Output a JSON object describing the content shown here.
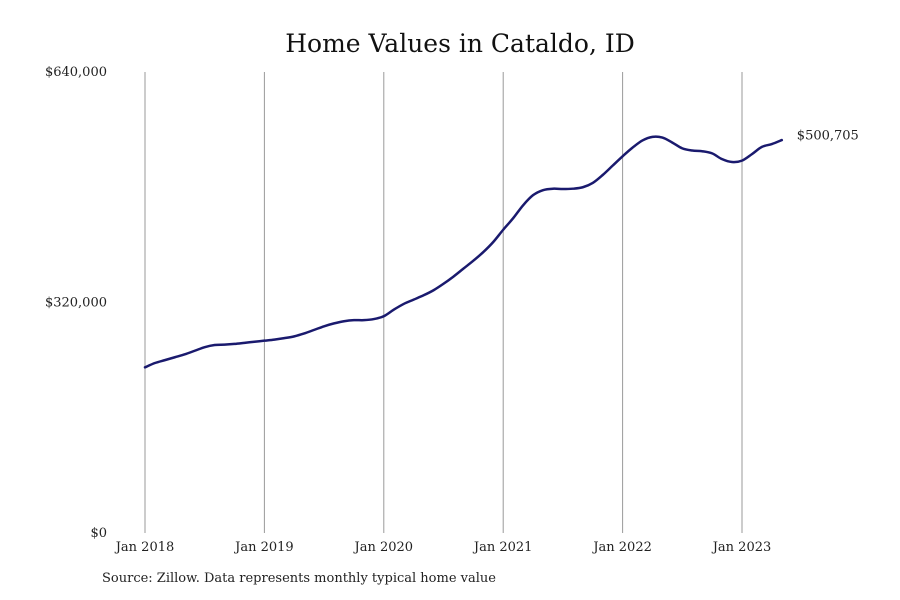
{
  "chart_data": {
    "type": "line",
    "title": "Home Values in Cataldo, ID",
    "xlabel": "",
    "ylabel": "",
    "x_tick_labels": [
      "Jan 2018",
      "Jan 2019",
      "Jan 2020",
      "Jan 2021",
      "Jan 2022",
      "Jan 2023"
    ],
    "y_tick_labels": [
      "$0",
      "$320,000",
      "$640,000"
    ],
    "y_ticks": [
      0,
      320000,
      640000
    ],
    "ylim": [
      0,
      640000
    ],
    "xlim": [
      "2018-01",
      "2023-05"
    ],
    "grid": "vertical at year starts",
    "legend": "none",
    "series_color": "#1a1a6e",
    "end_label": "$500,705",
    "series": [
      {
        "x": [
          "2018-01",
          "2018-02",
          "2018-03",
          "2018-04",
          "2018-05",
          "2018-06",
          "2018-07",
          "2018-08",
          "2018-09",
          "2018-10",
          "2018-11",
          "2018-12",
          "2019-01",
          "2019-02",
          "2019-03",
          "2019-04",
          "2019-05",
          "2019-06",
          "2019-07",
          "2019-08",
          "2019-09",
          "2019-10",
          "2019-11",
          "2019-12",
          "2020-01",
          "2020-02",
          "2020-03",
          "2020-04",
          "2020-05",
          "2020-06",
          "2020-07",
          "2020-08",
          "2020-09",
          "2020-10",
          "2020-11",
          "2020-12",
          "2021-01",
          "2021-02",
          "2021-03",
          "2021-04",
          "2021-05",
          "2021-06",
          "2021-07",
          "2021-08",
          "2021-09",
          "2021-10",
          "2021-11",
          "2021-12",
          "2022-01",
          "2022-02",
          "2022-03",
          "2022-04",
          "2022-05",
          "2022-06",
          "2022-07",
          "2022-08",
          "2022-09",
          "2022-10",
          "2022-11",
          "2022-12",
          "2023-01",
          "2023-02",
          "2023-03",
          "2023-04",
          "2023-05"
        ],
        "values": [
          230000,
          236000,
          240000,
          244000,
          248000,
          253000,
          258000,
          261000,
          261500,
          262500,
          264000,
          265500,
          267000,
          268500,
          270500,
          273000,
          277000,
          282000,
          287000,
          291000,
          294000,
          295500,
          295500,
          297000,
          301000,
          310000,
          318000,
          324000,
          330000,
          337000,
          346000,
          356000,
          367000,
          378000,
          390000,
          404000,
          421000,
          437000,
          455000,
          469000,
          476000,
          478000,
          477500,
          478000,
          480000,
          486000,
          497000,
          510000,
          523000,
          535000,
          545000,
          550000,
          549000,
          542000,
          534000,
          531000,
          530000,
          527000,
          519000,
          515000,
          517000,
          526000,
          536000,
          540000,
          500705
        ]
      }
    ]
  },
  "source_note": "Source: Zillow. Data represents monthly typical home value"
}
